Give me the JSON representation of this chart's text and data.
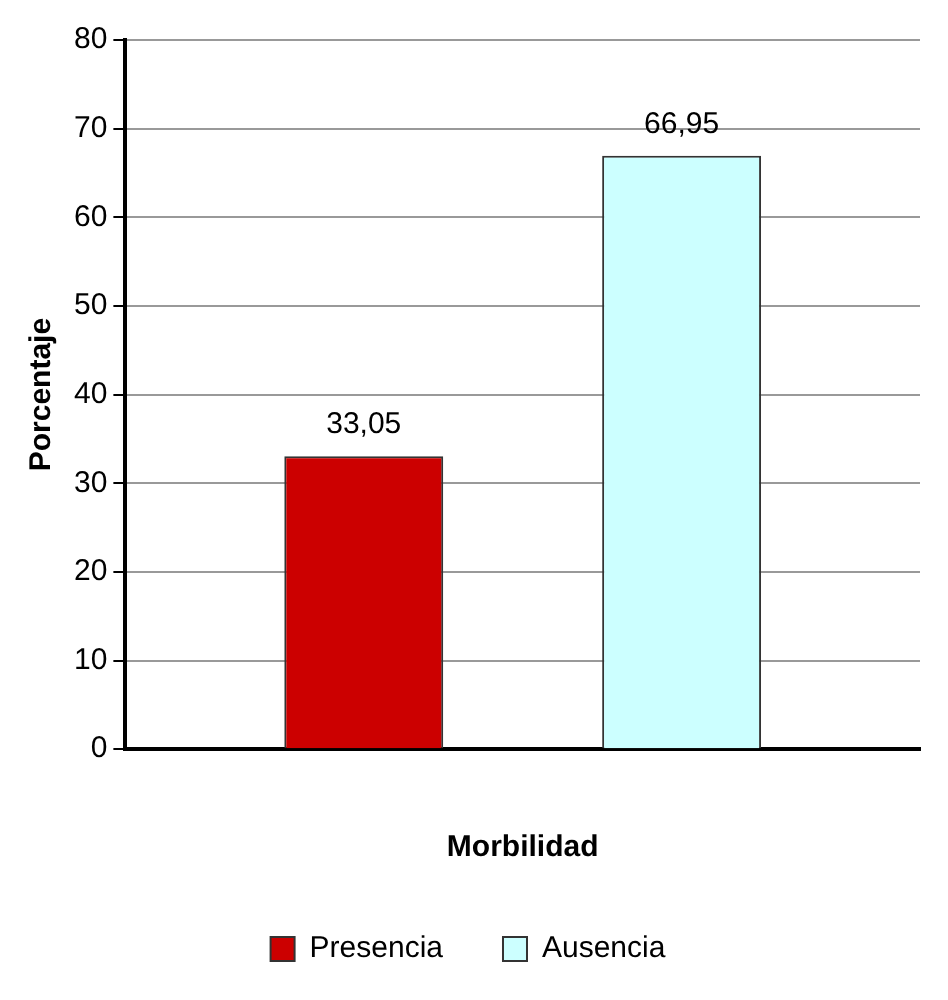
{
  "chart_data": {
    "type": "bar",
    "xlabel": "Morbilidad",
    "ylabel": "Porcentaje",
    "categories": [
      null
    ],
    "series": [
      {
        "name": "Presencia",
        "color": "#cc0000",
        "values": [
          33.05
        ],
        "value_labels": [
          "33,05"
        ]
      },
      {
        "name": "Ausencia",
        "color": "#ccffff",
        "values": [
          66.95
        ],
        "value_labels": [
          "66,95"
        ]
      }
    ],
    "ylim": [
      0,
      80
    ],
    "yticks": [
      0,
      10,
      20,
      30,
      40,
      50,
      60,
      70,
      80
    ],
    "grid": "y",
    "legend": "bottom"
  }
}
